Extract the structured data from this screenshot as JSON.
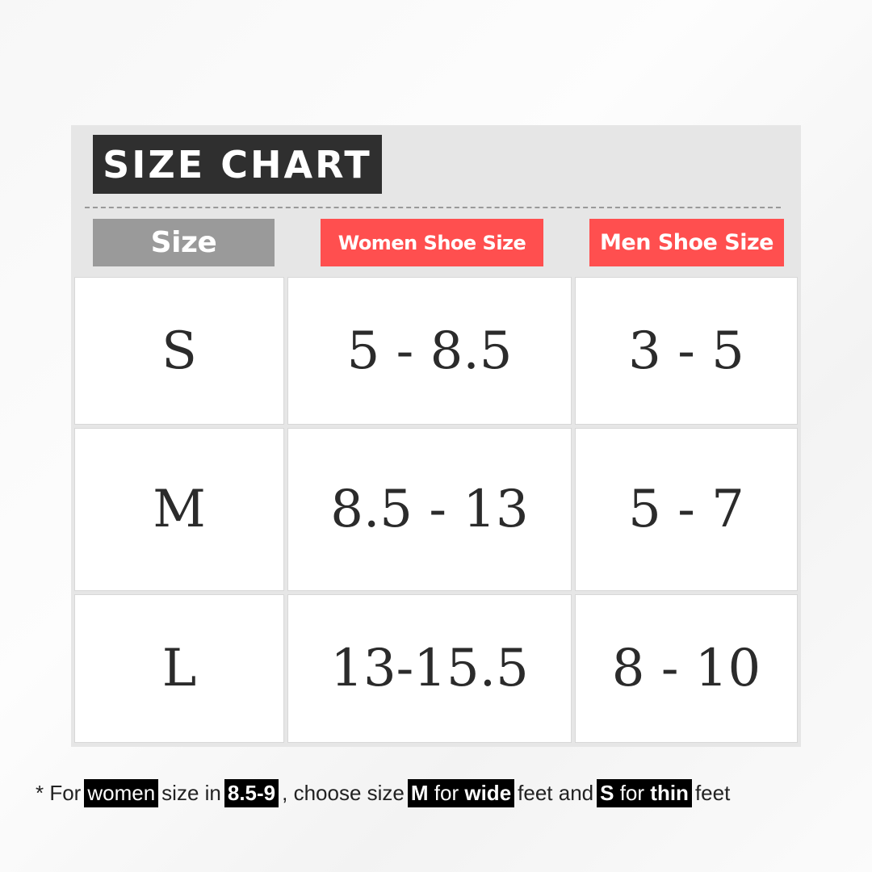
{
  "title": "SIZE CHART",
  "headers": [
    "Size",
    "Women Shoe Size",
    "Men Shoe Size"
  ],
  "rows": [
    [
      "S",
      "5 - 8.5",
      "3 - 5"
    ],
    [
      "M",
      "8.5 - 13",
      "5 - 7"
    ],
    [
      "L",
      "13-15.5",
      "8 - 10"
    ]
  ],
  "note": {
    "star": "* For",
    "women": "women",
    "t1": "size in",
    "range": "8.5-9",
    "t2": ", choose size",
    "m": "M",
    "for1": " for ",
    "wide": "wide",
    "t3": "feet and",
    "s": "S",
    "for2": " for ",
    "thin": "thin",
    "t4": "feet"
  },
  "colors": {
    "title_bg": "#2f2f2f",
    "size_header_bg": "#9a9a9a",
    "shoe_header_bg": "#ff4f4f",
    "highlight_bg": "#000000"
  }
}
